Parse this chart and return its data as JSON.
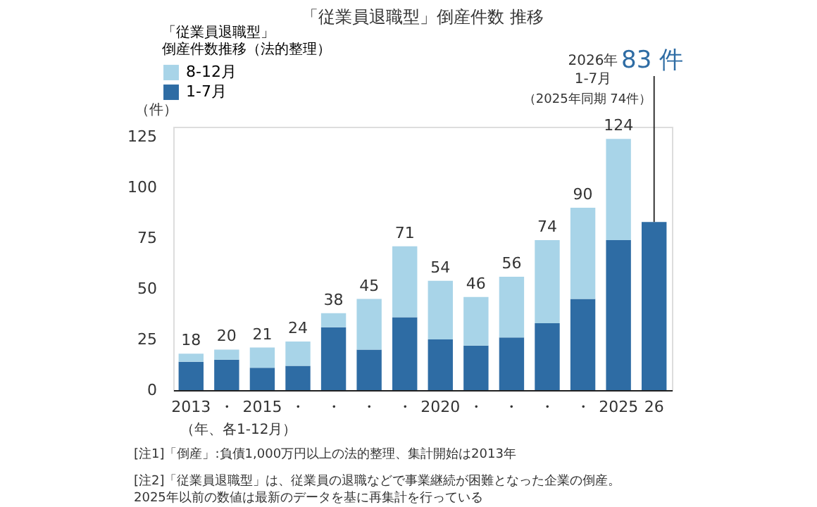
{
  "chart_data": {
    "type": "bar",
    "stacked": true,
    "title": "「従業員退職型」倒産件数 推移",
    "categories": [
      "2013",
      "・",
      "2015",
      "・",
      "・",
      "・",
      "・",
      "2020",
      "・",
      "・",
      "・",
      "・",
      "2025",
      "26"
    ],
    "series": [
      {
        "name": "1-7月",
        "color": "#2e6ca4",
        "values": [
          14,
          15,
          11,
          12,
          31,
          20,
          36,
          25,
          22,
          26,
          33,
          45,
          74,
          83
        ]
      },
      {
        "name": "8-12月",
        "color": "#a8d4e8",
        "values": [
          4,
          5,
          10,
          12,
          7,
          25,
          35,
          29,
          24,
          30,
          41,
          45,
          50,
          null
        ]
      }
    ],
    "totals": [
      "18",
      "20",
      "21",
      "24",
      "38",
      "45",
      "71",
      "54",
      "46",
      "56",
      "74",
      "90",
      "124",
      null
    ],
    "ylim": [
      0,
      130
    ],
    "yticks": [
      0,
      25,
      50,
      75,
      100,
      125
    ],
    "grid": false,
    "legend": "top left",
    "legend_title": "「従業員退職型」倒産件数推移（法的整理）",
    "xlabel": "（年、各1-12月）",
    "ylabel": "（件）",
    "annotations": [
      "2026年\n1-7月",
      {
        "text": "83 件",
        "x": "26",
        "y": 83
      },
      "（2025年同期 74件）",
      "[注1]「倒産」:負債1,000万円以上の法的整理、集計開始は2013年",
      "[注2]「従業員退職型」は、従業員の退職などで事業継続が困難となった企業の倒産。\n2025年以前の数値は最新のデータを基に再集計を行っている"
    ]
  }
}
